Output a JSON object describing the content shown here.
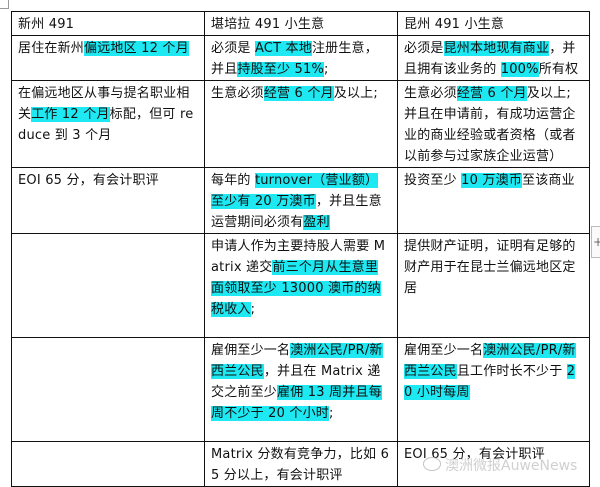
{
  "table": {
    "rows": [
      {
        "height": 22,
        "cells": [
          [
            {
              "t": "新州 491"
            }
          ],
          [
            {
              "t": "堪培拉 491 小生意"
            }
          ],
          [
            {
              "t": "昆州 491 小生意"
            }
          ]
        ]
      },
      {
        "height": 41,
        "cells": [
          [
            {
              "t": "居住在新州"
            },
            {
              "t": "偏远地区 12 个月",
              "hl": true
            }
          ],
          [
            {
              "t": "必须是 "
            },
            {
              "t": "ACT 本地",
              "hl": true
            },
            {
              "t": "注册生意，并且"
            },
            {
              "t": "持股至少 51%",
              "hl": true
            },
            {
              "t": ";"
            }
          ],
          [
            {
              "t": "必须是"
            },
            {
              "t": "昆州本地现有商业",
              "hl": true
            },
            {
              "t": "，并且拥有该业务的 "
            },
            {
              "t": "100%",
              "hl": true
            },
            {
              "t": "所有权"
            }
          ]
        ]
      },
      {
        "height": 84,
        "cells": [
          [
            {
              "t": "在偏远地区从事与提名职业相关"
            },
            {
              "t": "工作 12 个月",
              "hl": true
            },
            {
              "t": "标配，但可 reduce 到 3 个月"
            }
          ],
          [
            {
              "t": "生意必须"
            },
            {
              "t": "经营 6 个月",
              "hl": true
            },
            {
              "t": "及以上;"
            }
          ],
          [
            {
              "t": "生意必须"
            },
            {
              "t": "经营 6 个月",
              "hl": true
            },
            {
              "t": "及以上; 并且在申请前，有成功运营企业的商业经验或者资格（或者以前参与过家族企业运营）"
            }
          ]
        ]
      },
      {
        "height": 64,
        "cells": [
          [
            {
              "t": "EOI 65 分，有会计职评"
            }
          ],
          [
            {
              "t": "每年的 "
            },
            {
              "t": "turnover（营业额）至少有 20 万澳币",
              "hl": true
            },
            {
              "t": "，并且生意运营期间必须有"
            },
            {
              "t": "盈利",
              "hl": true
            }
          ],
          [
            {
              "t": "投资至少 "
            },
            {
              "t": "10 万澳币",
              "hl": true
            },
            {
              "t": "至该商业"
            }
          ]
        ]
      },
      {
        "height": 104,
        "cells": [
          [],
          [
            {
              "t": "申请人作为主要持股人需要 Matrix 递交"
            },
            {
              "t": "前三个月从生意里面领取至少 13000 澳币的纳税收入",
              "hl": true
            },
            {
              "t": ";"
            }
          ],
          [
            {
              "t": "提供财产证明，证明有足够的财产用于在昆士兰偏远地区定居"
            }
          ]
        ]
      },
      {
        "height": 104,
        "cells": [
          [],
          [
            {
              "t": "雇佣至少一名"
            },
            {
              "t": "澳洲公民/PR/新西兰公民",
              "hl": true
            },
            {
              "t": "，并且在 Matrix 递交之前至少"
            },
            {
              "t": "雇佣 13 周并且每周不少于 20 个小时",
              "hl": true
            },
            {
              "t": ";"
            }
          ],
          [
            {
              "t": "雇佣至少一名"
            },
            {
              "t": "澳洲公民/PR/新西兰公民",
              "hl": true
            },
            {
              "t": "且工作时长不少于 "
            },
            {
              "t": "20 小时每周",
              "hl": true
            }
          ]
        ]
      },
      {
        "height": 43,
        "cells": [
          [],
          [
            {
              "t": "Matrix 分数有竞争力，比如 65 分以上，有会计职评"
            }
          ],
          [
            {
              "t": "EOI 65 分，有会计职评"
            }
          ]
        ]
      }
    ]
  },
  "watermark": "澳洲微报AuweNews",
  "colors": {
    "highlight": "#1ee8f2",
    "border": "#111111"
  }
}
